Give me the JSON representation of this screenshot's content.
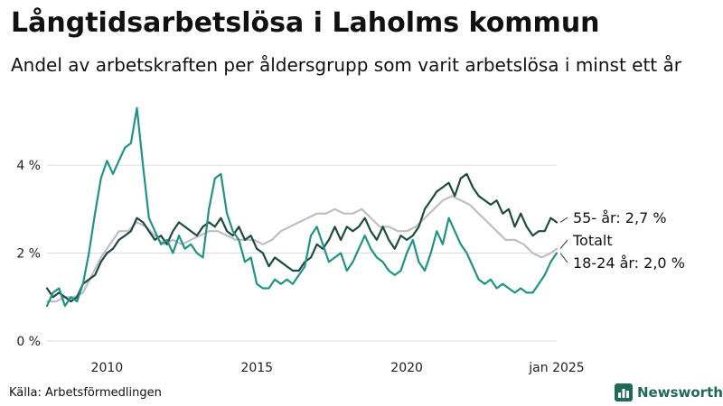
{
  "title": "Långtidsarbetslösa i Laholms kommun",
  "subtitle": "Andel av arbetskraften per åldersgrupp som varit arbetslösa i minst ett år",
  "source": "Källa: Arbetsförmedlingen",
  "brand": "Newsworthy",
  "chart_data": {
    "type": "line",
    "xlabel": "",
    "ylabel": "",
    "xlim": [
      2008.0,
      2025.0
    ],
    "ylim": [
      0,
      5.5
    ],
    "y_ticks": [
      0,
      2,
      4
    ],
    "y_tick_labels": [
      "0 %",
      "2 %",
      "4 %"
    ],
    "x_ticks": [
      2010,
      2015,
      2020,
      2025
    ],
    "x_tick_labels": [
      "2010",
      "2015",
      "2020",
      "jan 2025"
    ],
    "grid": "horizontal",
    "series": [
      {
        "name": "Totalt",
        "label": "Totalt",
        "color": "#c0bcc8",
        "points": [
          [
            2008.0,
            0.9
          ],
          [
            2008.3,
            0.9
          ],
          [
            2008.6,
            1.0
          ],
          [
            2008.9,
            1.0
          ],
          [
            2009.2,
            1.1
          ],
          [
            2009.5,
            1.5
          ],
          [
            2009.8,
            1.9
          ],
          [
            2010.1,
            2.2
          ],
          [
            2010.4,
            2.5
          ],
          [
            2010.7,
            2.5
          ],
          [
            2011.0,
            2.7
          ],
          [
            2011.3,
            2.6
          ],
          [
            2011.6,
            2.4
          ],
          [
            2011.9,
            2.2
          ],
          [
            2012.2,
            2.3
          ],
          [
            2012.5,
            2.2
          ],
          [
            2012.8,
            2.3
          ],
          [
            2013.1,
            2.4
          ],
          [
            2013.4,
            2.5
          ],
          [
            2013.7,
            2.5
          ],
          [
            2014.0,
            2.4
          ],
          [
            2014.3,
            2.3
          ],
          [
            2014.6,
            2.3
          ],
          [
            2014.9,
            2.3
          ],
          [
            2015.2,
            2.2
          ],
          [
            2015.5,
            2.3
          ],
          [
            2015.8,
            2.5
          ],
          [
            2016.1,
            2.6
          ],
          [
            2016.4,
            2.7
          ],
          [
            2016.7,
            2.8
          ],
          [
            2017.0,
            2.9
          ],
          [
            2017.3,
            2.9
          ],
          [
            2017.6,
            3.0
          ],
          [
            2017.9,
            2.9
          ],
          [
            2018.2,
            2.9
          ],
          [
            2018.5,
            3.0
          ],
          [
            2018.8,
            2.8
          ],
          [
            2019.1,
            2.6
          ],
          [
            2019.4,
            2.6
          ],
          [
            2019.7,
            2.5
          ],
          [
            2020.0,
            2.5
          ],
          [
            2020.3,
            2.6
          ],
          [
            2020.6,
            2.8
          ],
          [
            2020.9,
            3.0
          ],
          [
            2021.2,
            3.2
          ],
          [
            2021.5,
            3.3
          ],
          [
            2021.8,
            3.2
          ],
          [
            2022.1,
            3.1
          ],
          [
            2022.4,
            2.9
          ],
          [
            2022.7,
            2.7
          ],
          [
            2023.0,
            2.5
          ],
          [
            2023.3,
            2.3
          ],
          [
            2023.6,
            2.3
          ],
          [
            2023.9,
            2.2
          ],
          [
            2024.2,
            2.0
          ],
          [
            2024.5,
            1.9
          ],
          [
            2024.8,
            2.0
          ],
          [
            2025.0,
            2.1
          ]
        ]
      },
      {
        "name": "55- år",
        "label": "55- år: 2,7 %",
        "color": "#1e4a40",
        "points": [
          [
            2008.0,
            1.2
          ],
          [
            2008.2,
            1.0
          ],
          [
            2008.4,
            1.1
          ],
          [
            2008.6,
            1.0
          ],
          [
            2008.8,
            0.9
          ],
          [
            2009.0,
            1.0
          ],
          [
            2009.2,
            1.3
          ],
          [
            2009.4,
            1.4
          ],
          [
            2009.6,
            1.5
          ],
          [
            2009.8,
            1.8
          ],
          [
            2010.0,
            2.0
          ],
          [
            2010.2,
            2.1
          ],
          [
            2010.4,
            2.3
          ],
          [
            2010.6,
            2.4
          ],
          [
            2010.8,
            2.5
          ],
          [
            2011.0,
            2.8
          ],
          [
            2011.2,
            2.7
          ],
          [
            2011.4,
            2.5
          ],
          [
            2011.6,
            2.3
          ],
          [
            2011.8,
            2.4
          ],
          [
            2012.0,
            2.2
          ],
          [
            2012.2,
            2.5
          ],
          [
            2012.4,
            2.7
          ],
          [
            2012.6,
            2.6
          ],
          [
            2012.8,
            2.5
          ],
          [
            2013.0,
            2.4
          ],
          [
            2013.2,
            2.6
          ],
          [
            2013.4,
            2.7
          ],
          [
            2013.6,
            2.6
          ],
          [
            2013.8,
            2.8
          ],
          [
            2014.0,
            2.5
          ],
          [
            2014.2,
            2.4
          ],
          [
            2014.4,
            2.6
          ],
          [
            2014.6,
            2.3
          ],
          [
            2014.8,
            2.4
          ],
          [
            2015.0,
            2.1
          ],
          [
            2015.2,
            2.0
          ],
          [
            2015.4,
            1.7
          ],
          [
            2015.6,
            1.9
          ],
          [
            2015.8,
            1.8
          ],
          [
            2016.0,
            1.7
          ],
          [
            2016.2,
            1.6
          ],
          [
            2016.4,
            1.6
          ],
          [
            2016.6,
            1.8
          ],
          [
            2016.8,
            1.9
          ],
          [
            2017.0,
            2.2
          ],
          [
            2017.2,
            2.1
          ],
          [
            2017.4,
            2.3
          ],
          [
            2017.6,
            2.6
          ],
          [
            2017.8,
            2.3
          ],
          [
            2018.0,
            2.6
          ],
          [
            2018.2,
            2.5
          ],
          [
            2018.4,
            2.6
          ],
          [
            2018.6,
            2.8
          ],
          [
            2018.8,
            2.5
          ],
          [
            2019.0,
            2.3
          ],
          [
            2019.2,
            2.6
          ],
          [
            2019.4,
            2.3
          ],
          [
            2019.6,
            2.1
          ],
          [
            2019.8,
            2.4
          ],
          [
            2020.0,
            2.3
          ],
          [
            2020.2,
            2.4
          ],
          [
            2020.4,
            2.6
          ],
          [
            2020.6,
            3.0
          ],
          [
            2020.8,
            3.2
          ],
          [
            2021.0,
            3.4
          ],
          [
            2021.2,
            3.5
          ],
          [
            2021.4,
            3.6
          ],
          [
            2021.6,
            3.3
          ],
          [
            2021.8,
            3.7
          ],
          [
            2022.0,
            3.8
          ],
          [
            2022.2,
            3.5
          ],
          [
            2022.4,
            3.3
          ],
          [
            2022.6,
            3.2
          ],
          [
            2022.8,
            3.1
          ],
          [
            2023.0,
            3.2
          ],
          [
            2023.2,
            2.9
          ],
          [
            2023.4,
            3.0
          ],
          [
            2023.6,
            2.6
          ],
          [
            2023.8,
            2.9
          ],
          [
            2024.0,
            2.6
          ],
          [
            2024.2,
            2.4
          ],
          [
            2024.4,
            2.5
          ],
          [
            2024.6,
            2.5
          ],
          [
            2024.8,
            2.8
          ],
          [
            2025.0,
            2.7
          ]
        ]
      },
      {
        "name": "18-24 år",
        "label": "18-24 år: 2,0 %",
        "color": "#1f9484",
        "points": [
          [
            2008.0,
            0.8
          ],
          [
            2008.2,
            1.1
          ],
          [
            2008.4,
            1.2
          ],
          [
            2008.6,
            0.8
          ],
          [
            2008.8,
            1.0
          ],
          [
            2009.0,
            0.9
          ],
          [
            2009.2,
            1.3
          ],
          [
            2009.4,
            2.0
          ],
          [
            2009.6,
            2.9
          ],
          [
            2009.8,
            3.7
          ],
          [
            2010.0,
            4.1
          ],
          [
            2010.2,
            3.8
          ],
          [
            2010.4,
            4.1
          ],
          [
            2010.6,
            4.4
          ],
          [
            2010.8,
            4.5
          ],
          [
            2011.0,
            5.3
          ],
          [
            2011.2,
            4.0
          ],
          [
            2011.4,
            2.8
          ],
          [
            2011.6,
            2.5
          ],
          [
            2011.8,
            2.2
          ],
          [
            2012.0,
            2.3
          ],
          [
            2012.2,
            2.0
          ],
          [
            2012.4,
            2.4
          ],
          [
            2012.6,
            2.1
          ],
          [
            2012.8,
            2.2
          ],
          [
            2013.0,
            2.0
          ],
          [
            2013.2,
            1.9
          ],
          [
            2013.4,
            3.0
          ],
          [
            2013.6,
            3.7
          ],
          [
            2013.8,
            3.8
          ],
          [
            2014.0,
            2.9
          ],
          [
            2014.2,
            2.5
          ],
          [
            2014.4,
            2.3
          ],
          [
            2014.6,
            1.8
          ],
          [
            2014.8,
            1.9
          ],
          [
            2015.0,
            1.3
          ],
          [
            2015.2,
            1.2
          ],
          [
            2015.4,
            1.2
          ],
          [
            2015.6,
            1.4
          ],
          [
            2015.8,
            1.3
          ],
          [
            2016.0,
            1.4
          ],
          [
            2016.2,
            1.3
          ],
          [
            2016.4,
            1.5
          ],
          [
            2016.6,
            1.7
          ],
          [
            2016.8,
            2.4
          ],
          [
            2017.0,
            2.6
          ],
          [
            2017.2,
            2.2
          ],
          [
            2017.4,
            1.8
          ],
          [
            2017.6,
            1.9
          ],
          [
            2017.8,
            2.0
          ],
          [
            2018.0,
            1.6
          ],
          [
            2018.2,
            1.8
          ],
          [
            2018.4,
            2.1
          ],
          [
            2018.6,
            2.4
          ],
          [
            2018.8,
            2.1
          ],
          [
            2019.0,
            1.9
          ],
          [
            2019.2,
            1.8
          ],
          [
            2019.4,
            1.6
          ],
          [
            2019.6,
            1.5
          ],
          [
            2019.8,
            1.6
          ],
          [
            2020.0,
            2.0
          ],
          [
            2020.2,
            2.3
          ],
          [
            2020.4,
            1.8
          ],
          [
            2020.6,
            1.6
          ],
          [
            2020.8,
            2.0
          ],
          [
            2021.0,
            2.5
          ],
          [
            2021.2,
            2.2
          ],
          [
            2021.4,
            2.8
          ],
          [
            2021.6,
            2.5
          ],
          [
            2021.8,
            2.2
          ],
          [
            2022.0,
            2.0
          ],
          [
            2022.2,
            1.7
          ],
          [
            2022.4,
            1.4
          ],
          [
            2022.6,
            1.3
          ],
          [
            2022.8,
            1.4
          ],
          [
            2023.0,
            1.2
          ],
          [
            2023.2,
            1.3
          ],
          [
            2023.4,
            1.2
          ],
          [
            2023.6,
            1.1
          ],
          [
            2023.8,
            1.2
          ],
          [
            2024.0,
            1.1
          ],
          [
            2024.2,
            1.1
          ],
          [
            2024.4,
            1.3
          ],
          [
            2024.6,
            1.5
          ],
          [
            2024.8,
            1.8
          ],
          [
            2025.0,
            2.0
          ]
        ]
      }
    ]
  }
}
